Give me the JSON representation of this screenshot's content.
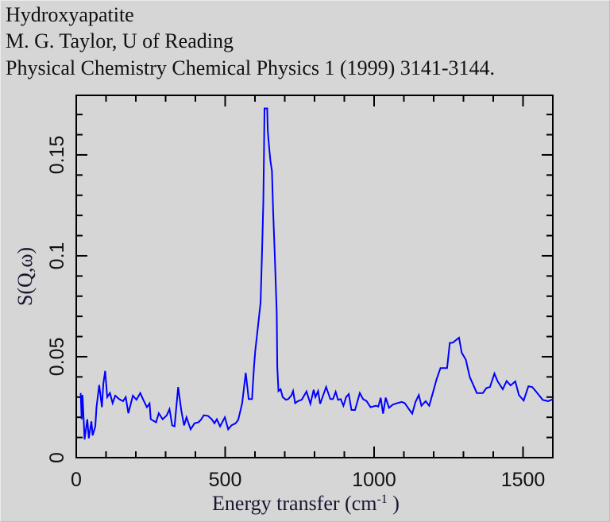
{
  "header": {
    "lines": [
      "Hydroxyapatite",
      "M. G. Taylor, U of Reading",
      "Physical Chemistry Chemical Physics 1 (1999) 3141-3144."
    ]
  },
  "chart_data": {
    "type": "line",
    "title": "Hydroxyapatite",
    "xlabel": "Energy transfer (cm-1 )",
    "xlabel_main": "Energy transfer (cm",
    "xlabel_sup": "-1",
    "xlabel_end": " )",
    "ylabel": "S(Q,ω)",
    "xlim": [
      0,
      1600
    ],
    "ylim": [
      0,
      0.1795
    ],
    "x_ticks": [
      0,
      500,
      1000,
      1500
    ],
    "x_tick_labels": [
      "0",
      "500",
      "1000",
      "1500"
    ],
    "x_minor_step": 100,
    "y_ticks": [
      0,
      0.05,
      0.1,
      0.15
    ],
    "y_tick_labels": [
      "0",
      "0.05",
      "0.1",
      "0.15"
    ],
    "y_minor_step": 0.01,
    "grid": false,
    "line_color": "#0000ff",
    "series": [
      {
        "name": "Hydroxyapatite",
        "x": [
          15,
          18,
          21,
          28,
          37,
          42,
          51,
          55,
          64,
          68,
          77,
          86,
          91,
          97,
          104,
          113,
          122,
          131,
          144,
          157,
          166,
          175,
          190,
          202,
          215,
          224,
          237,
          246,
          250,
          268,
          277,
          290,
          304,
          313,
          322,
          330,
          342,
          353,
          362,
          370,
          384,
          397,
          410,
          419,
          428,
          442,
          455,
          464,
          472,
          483,
          499,
          510,
          521,
          535,
          544,
          557,
          569,
          579,
          590,
          597,
          601,
          610,
          619,
          624,
          628,
          630,
          632,
          641,
          643,
          648,
          652,
          657,
          661,
          666,
          673,
          675,
          679,
          686,
          693,
          704,
          712,
          723,
          728,
          735,
          744,
          757,
          773,
          786,
          797,
          803,
          812,
          819,
          839,
          853,
          862,
          871,
          879,
          888,
          897,
          906,
          915,
          924,
          936,
          952,
          963,
          975,
          988,
          1006,
          1014,
          1022,
          1030,
          1039,
          1050,
          1063,
          1077,
          1093,
          1103,
          1117,
          1128,
          1139,
          1150,
          1159,
          1173,
          1185,
          1197,
          1210,
          1223,
          1245,
          1254,
          1265,
          1277,
          1285,
          1294,
          1308,
          1321,
          1345,
          1365,
          1377,
          1389,
          1404,
          1414,
          1432,
          1445,
          1458,
          1474,
          1486,
          1502,
          1518,
          1531,
          1546,
          1566,
          1584,
          1600
        ],
        "y": [
          0.032,
          0.019,
          0.031,
          0.009,
          0.019,
          0.0096,
          0.018,
          0.011,
          0.0155,
          0.025,
          0.036,
          0.025,
          0.0366,
          0.043,
          0.03,
          0.032,
          0.027,
          0.0307,
          0.029,
          0.028,
          0.03,
          0.022,
          0.0307,
          0.0287,
          0.032,
          0.029,
          0.025,
          0.0268,
          0.019,
          0.0175,
          0.022,
          0.019,
          0.021,
          0.024,
          0.016,
          0.0155,
          0.035,
          0.023,
          0.016,
          0.02,
          0.014,
          0.017,
          0.0175,
          0.0188,
          0.021,
          0.0207,
          0.019,
          0.017,
          0.019,
          0.0155,
          0.02,
          0.014,
          0.016,
          0.017,
          0.0188,
          0.027,
          0.042,
          0.029,
          0.029,
          0.0457,
          0.053,
          0.065,
          0.077,
          0.103,
          0.126,
          0.149,
          0.173,
          0.173,
          0.162,
          0.153,
          0.147,
          0.142,
          0.122,
          0.102,
          0.072,
          0.045,
          0.033,
          0.0339,
          0.03,
          0.0287,
          0.029,
          0.031,
          0.033,
          0.027,
          0.028,
          0.0287,
          0.0328,
          0.0267,
          0.0336,
          0.03,
          0.033,
          0.0267,
          0.035,
          0.029,
          0.029,
          0.0326,
          0.0286,
          0.029,
          0.0257,
          0.03,
          0.0315,
          0.0236,
          0.0236,
          0.032,
          0.029,
          0.028,
          0.025,
          0.0257,
          0.0253,
          0.0297,
          0.0218,
          0.0297,
          0.0247,
          0.0263,
          0.027,
          0.0276,
          0.027,
          0.024,
          0.0218,
          0.0276,
          0.031,
          0.0257,
          0.028,
          0.0257,
          0.032,
          0.039,
          0.0444,
          0.0444,
          0.0568,
          0.057,
          0.0585,
          0.0594,
          0.052,
          0.0485,
          0.04,
          0.032,
          0.032,
          0.0345,
          0.035,
          0.0417,
          0.038,
          0.0339,
          0.038,
          0.0358,
          0.0378,
          0.031,
          0.0283,
          0.0354,
          0.035,
          0.0323,
          0.0286,
          0.028,
          0.0289
        ]
      }
    ]
  }
}
